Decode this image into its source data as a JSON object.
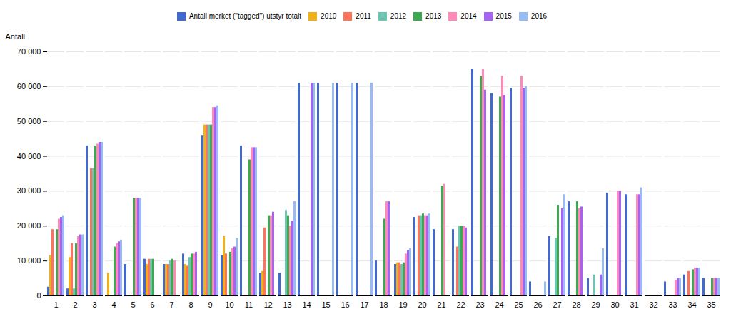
{
  "chart_data": {
    "type": "bar",
    "ylabel": "Antall",
    "categories": [
      1,
      2,
      3,
      4,
      5,
      6,
      7,
      8,
      9,
      10,
      11,
      12,
      13,
      14,
      15,
      16,
      17,
      18,
      19,
      20,
      21,
      22,
      23,
      24,
      25,
      26,
      27,
      28,
      29,
      30,
      31,
      32,
      33,
      34,
      35
    ],
    "series": [
      {
        "name": "Antall merket (\"tagged\") utstyr totalt",
        "values": [
          2500,
          2000,
          43000,
          0,
          9000,
          10500,
          9000,
          12000,
          46000,
          11500,
          43000,
          6500,
          6500,
          61000,
          61000,
          61000,
          61000,
          10000,
          9000,
          22500,
          19000,
          19000,
          65000,
          58000,
          59500,
          4000,
          17000,
          27000,
          5000,
          29500,
          29000,
          0,
          4000,
          6000,
          5000
        ]
      },
      {
        "name": "2010",
        "values": [
          11500,
          11000,
          0,
          6500,
          0,
          9000,
          9000,
          9000,
          49000,
          17000,
          0,
          7000,
          0,
          0,
          0,
          0,
          0,
          0,
          9500,
          0,
          0,
          0,
          0,
          0,
          0,
          0,
          0,
          0,
          0,
          0,
          0,
          0,
          0,
          0,
          0
        ]
      },
      {
        "name": "2011",
        "values": [
          19000,
          15000,
          36500,
          0,
          0,
          10500,
          9000,
          8500,
          49000,
          12000,
          0,
          19500,
          0,
          0,
          0,
          0,
          0,
          0,
          9500,
          23000,
          0,
          14000,
          0,
          0,
          0,
          0,
          0,
          0,
          0,
          0,
          0,
          0,
          0,
          7000,
          0
        ]
      },
      {
        "name": "2012",
        "values": [
          0,
          2000,
          36500,
          0,
          0,
          10500,
          10000,
          11000,
          49000,
          0,
          0,
          0,
          24500,
          0,
          0,
          0,
          0,
          0,
          9000,
          23000,
          0,
          20000,
          0,
          0,
          0,
          0,
          16500,
          0,
          6000,
          0,
          0,
          0,
          0,
          0,
          0
        ]
      },
      {
        "name": "2013",
        "values": [
          19000,
          15000,
          43000,
          14000,
          28000,
          10500,
          10500,
          12000,
          49000,
          12500,
          39000,
          23000,
          23000,
          0,
          0,
          0,
          0,
          22000,
          9500,
          23500,
          31500,
          20000,
          63000,
          57000,
          0,
          0,
          26000,
          27000,
          0,
          0,
          0,
          0,
          0,
          7500,
          5000
        ]
      },
      {
        "name": "2014",
        "values": [
          22000,
          17000,
          43500,
          15000,
          28000,
          0,
          10000,
          12000,
          54000,
          13500,
          42500,
          23000,
          20000,
          0,
          0,
          0,
          0,
          27000,
          12000,
          23000,
          32000,
          20000,
          65000,
          63000,
          63000,
          0,
          0,
          25000,
          0,
          30000,
          29000,
          0,
          4500,
          8000,
          5000
        ]
      },
      {
        "name": "2015",
        "values": [
          22500,
          17500,
          44000,
          15500,
          28000,
          0,
          0,
          12500,
          54000,
          14000,
          42500,
          24000,
          21500,
          61000,
          0,
          0,
          0,
          27000,
          13000,
          23000,
          0,
          19500,
          59000,
          57500,
          59500,
          0,
          25000,
          25500,
          6000,
          30000,
          29000,
          0,
          5000,
          8000,
          5000
        ]
      },
      {
        "name": "2016",
        "values": [
          23000,
          17500,
          44000,
          16000,
          28000,
          0,
          0,
          0,
          54500,
          16500,
          42500,
          0,
          27000,
          61000,
          61000,
          61000,
          61000,
          0,
          13500,
          23500,
          0,
          0,
          0,
          0,
          60000,
          4000,
          29000,
          0,
          13500,
          0,
          31000,
          0,
          5000,
          8000,
          5000
        ]
      }
    ],
    "ylim": [
      0,
      70000
    ],
    "yticks": [
      0,
      {
        "value": 10000,
        "label": "10 000"
      },
      {
        "value": 20000,
        "label": "20 000"
      },
      {
        "value": 30000,
        "label": "30 000"
      },
      {
        "value": 40000,
        "label": "40 000"
      },
      {
        "value": 50000,
        "label": "50 000"
      },
      {
        "value": 60000,
        "label": "60 000"
      },
      {
        "value": 70000,
        "label": "70 000"
      }
    ],
    "grid": true,
    "legend": "top"
  }
}
